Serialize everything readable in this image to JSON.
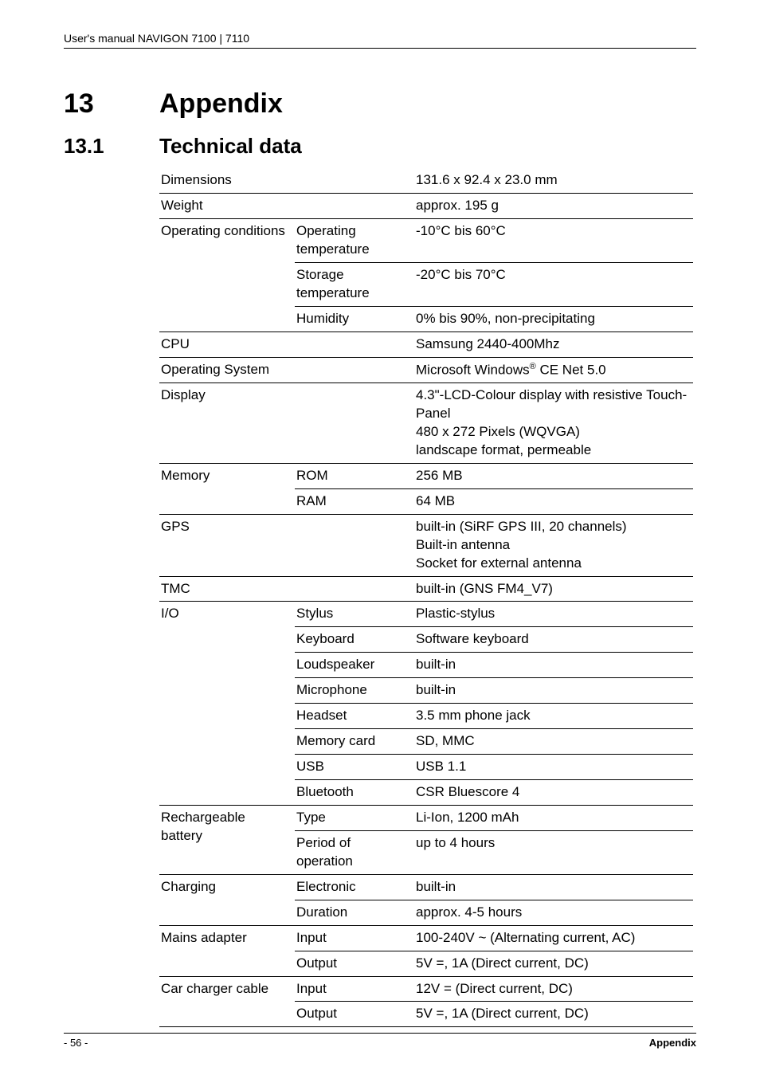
{
  "header": {
    "text": "User's manual NAVIGON 7100 | 7110"
  },
  "chapter": {
    "number": "13",
    "title": "Appendix"
  },
  "section": {
    "number": "13.1",
    "title": "Technical data"
  },
  "footer": {
    "page": "- 56 -",
    "label": "Appendix"
  },
  "rows": {
    "dimensions": {
      "label": "Dimensions",
      "value": "131.6 x 92.4 x 23.0 mm"
    },
    "weight": {
      "label": "Weight",
      "value": "approx. 195 g"
    },
    "op_cond": {
      "label": "Operating conditions",
      "r1": {
        "k": "Operating temperature",
        "v": "-10°C bis 60°C"
      },
      "r2": {
        "k": "Storage temperature",
        "v": "-20°C bis 70°C"
      },
      "r3": {
        "k": "Humidity",
        "v": "0% bis 90%, non-precipitating"
      }
    },
    "cpu": {
      "label": "CPU",
      "value": "Samsung 2440-400Mhz"
    },
    "os": {
      "label": "Operating System",
      "value_pre": "Microsoft Windows",
      "value_sup": "®",
      "value_post": " CE Net 5.0"
    },
    "display": {
      "label": "Display",
      "l1": "4.3\"-LCD-Colour display with resistive Touch-Panel",
      "l2": "480 x 272 Pixels (WQVGA)",
      "l3": "landscape format, permeable"
    },
    "memory": {
      "label": "Memory",
      "r1": {
        "k": "ROM",
        "v": "256 MB"
      },
      "r2": {
        "k": "RAM",
        "v": "64 MB"
      }
    },
    "gps": {
      "label": "GPS",
      "l1": "built-in (SiRF GPS III, 20 channels)",
      "l2": "Built-in antenna",
      "l3": "Socket for external antenna"
    },
    "tmc": {
      "label": "TMC",
      "value": "built-in (GNS FM4_V7)"
    },
    "io": {
      "label": "I/O",
      "r1": {
        "k": "Stylus",
        "v": "Plastic-stylus"
      },
      "r2": {
        "k": "Keyboard",
        "v": "Software keyboard"
      },
      "r3": {
        "k": "Loudspeaker",
        "v": "built-in"
      },
      "r4": {
        "k": "Microphone",
        "v": "built-in"
      },
      "r5": {
        "k": "Headset",
        "v": "3.5 mm phone jack"
      },
      "r6": {
        "k": "Memory card",
        "v": "SD, MMC"
      },
      "r7": {
        "k": "USB",
        "v": "USB 1.1"
      },
      "r8": {
        "k": "Bluetooth",
        "v": "CSR Bluescore 4"
      }
    },
    "battery": {
      "label": "Rechargeable battery",
      "r1": {
        "k": "Type",
        "v": "Li-Ion, 1200 mAh"
      },
      "r2": {
        "k": "Period of operation",
        "v": "up to 4 hours"
      }
    },
    "charging": {
      "label": "Charging",
      "r1": {
        "k": "Electronic",
        "v": "built-in"
      },
      "r2": {
        "k": "Duration",
        "v": "approx. 4-5 hours"
      }
    },
    "mains": {
      "label": "Mains adapter",
      "r1": {
        "k": "Input",
        "v": "100-240V ~ (Alternating current, AC)"
      },
      "r2": {
        "k": "Output",
        "v": "5V =, 1A (Direct current, DC)"
      }
    },
    "car": {
      "label": "Car charger cable",
      "r1": {
        "k": "Input",
        "v": "12V = (Direct current, DC)"
      },
      "r2": {
        "k": "Output",
        "v": "5V =, 1A (Direct current, DC)"
      }
    }
  }
}
